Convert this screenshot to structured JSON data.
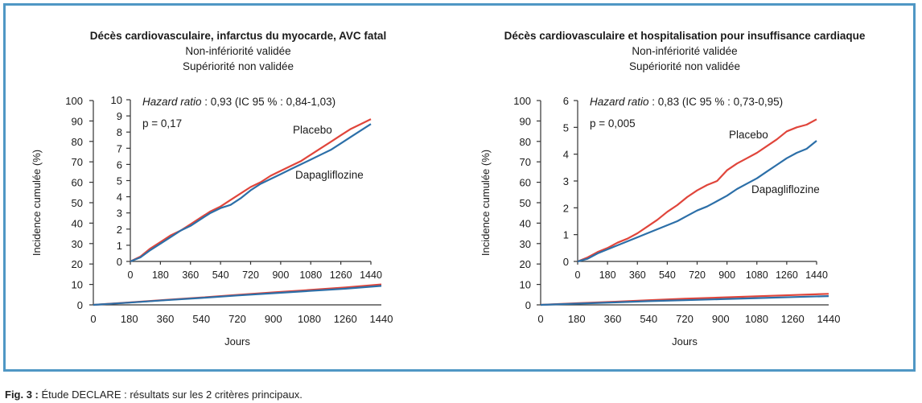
{
  "colors": {
    "frame": "#4f97c4",
    "placebo": "#e0453b",
    "dapagliflozine": "#2c6fa8",
    "axis": "#333333"
  },
  "caption": {
    "label": "Fig. 3 :",
    "text": " Étude DECLARE : résultats sur les 2 critères principaux."
  },
  "chart_data": [
    {
      "type": "line",
      "title": "Décès cardiovasculaire, infarctus du myocarde, AVC fatal",
      "subtitle_lines": [
        "Non-infériorité validée",
        "Supériorité non validée"
      ],
      "xlabel": "Jours",
      "ylabel": "Incidence cumulée (%)",
      "xlim": [
        0,
        1440
      ],
      "ylim": [
        0,
        100
      ],
      "xticks": [
        0,
        180,
        360,
        540,
        720,
        900,
        1080,
        1260,
        1440
      ],
      "yticks": [
        0,
        10,
        20,
        30,
        40,
        50,
        60,
        70,
        80,
        90,
        100
      ],
      "series": [
        {
          "name": "Placebo",
          "x": [
            0,
            180,
            360,
            540,
            720,
            900,
            1080,
            1260,
            1440
          ],
          "y": [
            0,
            1.2,
            2.4,
            3.6,
            4.9,
            6.1,
            7.3,
            8.5,
            10.0
          ]
        },
        {
          "name": "Dapagliflozine",
          "x": [
            0,
            180,
            360,
            540,
            720,
            900,
            1080,
            1260,
            1440
          ],
          "y": [
            0,
            1.1,
            2.3,
            3.4,
            4.6,
            5.7,
            6.8,
            7.9,
            9.3
          ]
        }
      ],
      "inset": {
        "annotation_ratio_label": "Hazard ratio",
        "annotation_ratio_value": " : 0,93 (IC 95 % : 0,84-1,03)",
        "annotation_p": "p = 0,17",
        "xlim": [
          0,
          1440
        ],
        "ylim": [
          0,
          10
        ],
        "xticks": [
          0,
          180,
          360,
          540,
          720,
          900,
          1080,
          1260,
          1440
        ],
        "yticks": [
          0,
          1,
          2,
          3,
          4,
          5,
          6,
          7,
          8,
          9,
          10
        ],
        "labels": [
          "Placebo",
          "Dapagliflozine"
        ],
        "series": [
          {
            "name": "Placebo",
            "x": [
              0,
              60,
              120,
              180,
              240,
              300,
              360,
              420,
              480,
              540,
              600,
              660,
              720,
              780,
              840,
              900,
              960,
              1020,
              1080,
              1140,
              1200,
              1260,
              1320,
              1380,
              1440
            ],
            "y": [
              0,
              0.3,
              0.8,
              1.2,
              1.6,
              1.9,
              2.3,
              2.7,
              3.1,
              3.4,
              3.8,
              4.2,
              4.6,
              4.9,
              5.3,
              5.6,
              5.9,
              6.2,
              6.6,
              7.0,
              7.4,
              7.8,
              8.2,
              8.5,
              8.8
            ]
          },
          {
            "name": "Dapagliflozine",
            "x": [
              0,
              60,
              120,
              180,
              240,
              300,
              360,
              420,
              480,
              540,
              600,
              660,
              720,
              780,
              840,
              900,
              960,
              1020,
              1080,
              1140,
              1200,
              1260,
              1320,
              1380,
              1440
            ],
            "y": [
              0,
              0.25,
              0.7,
              1.1,
              1.5,
              1.9,
              2.2,
              2.6,
              3.0,
              3.3,
              3.5,
              3.9,
              4.4,
              4.8,
              5.1,
              5.4,
              5.7,
              6.0,
              6.3,
              6.6,
              6.9,
              7.3,
              7.7,
              8.1,
              8.5
            ]
          }
        ]
      }
    },
    {
      "type": "line",
      "title": "Décès cardiovasculaire et hospitalisation pour insuffisance cardiaque",
      "subtitle_lines": [
        "Non-infériorité validée",
        "Supériorité non validée"
      ],
      "xlabel": "Jours",
      "ylabel": "Incidence cumulée (%)",
      "xlim": [
        0,
        1440
      ],
      "ylim": [
        0,
        100
      ],
      "xticks": [
        0,
        180,
        360,
        540,
        720,
        900,
        1080,
        1260,
        1440
      ],
      "yticks": [
        0,
        10,
        20,
        30,
        40,
        50,
        60,
        70,
        80,
        90,
        100
      ],
      "series": [
        {
          "name": "Placebo",
          "x": [
            0,
            180,
            360,
            540,
            720,
            900,
            1080,
            1260,
            1440
          ],
          "y": [
            0,
            0.8,
            1.5,
            2.3,
            3.0,
            3.6,
            4.2,
            4.8,
            5.4
          ]
        },
        {
          "name": "Dapagliflozine",
          "x": [
            0,
            180,
            360,
            540,
            720,
            900,
            1080,
            1260,
            1440
          ],
          "y": [
            0,
            0.6,
            1.2,
            1.8,
            2.3,
            2.8,
            3.3,
            3.8,
            4.3
          ]
        }
      ],
      "inset": {
        "annotation_ratio_label": "Hazard ratio",
        "annotation_ratio_value": " : 0,83 (IC 95 % : 0,73-0,95)",
        "annotation_p": "p = 0,005",
        "xlim": [
          0,
          1440
        ],
        "ylim": [
          0,
          6
        ],
        "xticks": [
          0,
          180,
          360,
          540,
          720,
          900,
          1080,
          1260,
          1440
        ],
        "yticks": [
          0,
          1,
          2,
          3,
          4,
          5,
          6
        ],
        "labels": [
          "Placebo",
          "Dapagliflozine"
        ],
        "series": [
          {
            "name": "Placebo",
            "x": [
              0,
              60,
              120,
              180,
              240,
              300,
              360,
              420,
              480,
              540,
              600,
              660,
              720,
              780,
              840,
              900,
              960,
              1020,
              1080,
              1140,
              1200,
              1260,
              1320,
              1380,
              1440
            ],
            "y": [
              0,
              0.15,
              0.35,
              0.5,
              0.7,
              0.85,
              1.05,
              1.3,
              1.55,
              1.85,
              2.1,
              2.4,
              2.65,
              2.85,
              3.0,
              3.4,
              3.65,
              3.85,
              4.05,
              4.3,
              4.55,
              4.85,
              5.0,
              5.1,
              5.3
            ]
          },
          {
            "name": "Dapagliflozine",
            "x": [
              0,
              60,
              120,
              180,
              240,
              300,
              360,
              420,
              480,
              540,
              600,
              660,
              720,
              780,
              840,
              900,
              960,
              1020,
              1080,
              1140,
              1200,
              1260,
              1320,
              1380,
              1440
            ],
            "y": [
              0,
              0.1,
              0.3,
              0.45,
              0.6,
              0.75,
              0.9,
              1.05,
              1.2,
              1.35,
              1.5,
              1.7,
              1.9,
              2.05,
              2.25,
              2.45,
              2.7,
              2.9,
              3.1,
              3.35,
              3.6,
              3.85,
              4.05,
              4.2,
              4.5
            ]
          }
        ]
      }
    }
  ]
}
